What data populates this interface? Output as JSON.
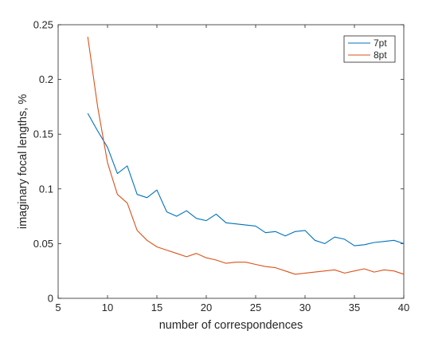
{
  "chart_data": {
    "type": "line",
    "title": "",
    "xlabel": "number of correspondences",
    "ylabel": "imaginary focal lengths, %",
    "xlim": [
      5,
      40
    ],
    "ylim": [
      0,
      0.25
    ],
    "xticks": [
      "5",
      "10",
      "15",
      "20",
      "25",
      "30",
      "35",
      "40"
    ],
    "yticks": [
      "0",
      "0.05",
      "0.1",
      "0.15",
      "0.2",
      "0.25"
    ],
    "grid": false,
    "legend_position": "top-right",
    "x": [
      8,
      9,
      10,
      11,
      12,
      13,
      14,
      15,
      16,
      17,
      18,
      19,
      20,
      21,
      22,
      23,
      24,
      25,
      26,
      27,
      28,
      29,
      30,
      31,
      32,
      33,
      34,
      35,
      36,
      37,
      38,
      39,
      40
    ],
    "series": [
      {
        "name": "7pt",
        "color": "#0072BD",
        "values": [
          0.169,
          0.153,
          0.138,
          0.114,
          0.121,
          0.095,
          0.092,
          0.099,
          0.079,
          0.075,
          0.08,
          0.073,
          0.071,
          0.077,
          0.069,
          0.068,
          0.067,
          0.066,
          0.06,
          0.061,
          0.057,
          0.061,
          0.062,
          0.053,
          0.05,
          0.056,
          0.054,
          0.048,
          0.049,
          0.051,
          0.052,
          0.053,
          0.05
        ]
      },
      {
        "name": "8pt",
        "color": "#D95319",
        "values": [
          0.239,
          0.175,
          0.124,
          0.095,
          0.087,
          0.062,
          0.053,
          0.047,
          0.044,
          0.041,
          0.038,
          0.041,
          0.037,
          0.035,
          0.032,
          0.033,
          0.033,
          0.031,
          0.029,
          0.028,
          0.025,
          0.022,
          0.023,
          0.024,
          0.025,
          0.026,
          0.023,
          0.025,
          0.027,
          0.024,
          0.026,
          0.025,
          0.022
        ]
      }
    ]
  }
}
